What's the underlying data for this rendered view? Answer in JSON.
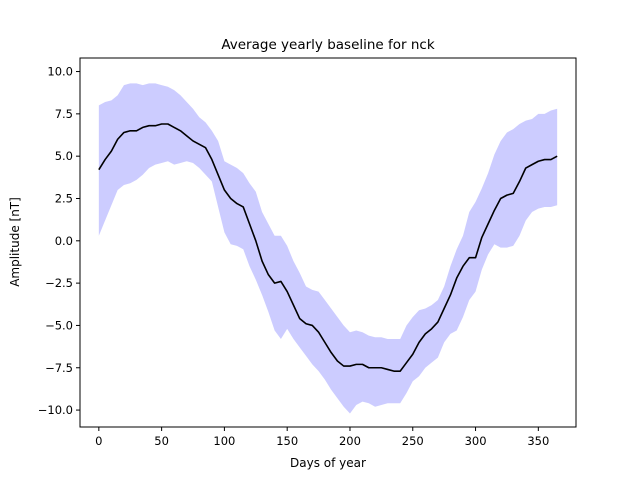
{
  "chart_data": {
    "type": "line",
    "title": "Average yearly baseline for nck",
    "xlabel": "Days of year",
    "ylabel": "Amplitude [nT]",
    "xlim": [
      -15,
      380
    ],
    "ylim": [
      -11,
      10.8
    ],
    "xticks": [
      0,
      50,
      100,
      150,
      200,
      250,
      300,
      350
    ],
    "yticks": [
      10.0,
      7.5,
      5.0,
      2.5,
      0.0,
      -2.5,
      -5.0,
      -7.5,
      -10.0
    ],
    "xtick_labels": [
      "0",
      "50",
      "100",
      "150",
      "200",
      "250",
      "300",
      "350"
    ],
    "ytick_labels": [
      "10.0",
      "7.5",
      "5.0",
      "2.5",
      "0.0",
      "−2.5",
      "−5.0",
      "−7.5",
      "−10.0"
    ],
    "grid": false,
    "series": [
      {
        "kind": "line",
        "color": "#000000",
        "x": [
          0,
          5,
          10,
          15,
          20,
          25,
          30,
          35,
          40,
          45,
          50,
          55,
          60,
          65,
          70,
          75,
          80,
          85,
          90,
          95,
          100,
          105,
          110,
          115,
          120,
          125,
          130,
          135,
          140,
          145,
          150,
          155,
          160,
          165,
          170,
          175,
          180,
          185,
          190,
          195,
          200,
          205,
          210,
          215,
          220,
          225,
          230,
          235,
          240,
          245,
          250,
          255,
          260,
          265,
          270,
          275,
          280,
          285,
          290,
          295,
          300,
          305,
          310,
          315,
          320,
          325,
          330,
          335,
          340,
          345,
          350,
          355,
          360,
          365
        ],
        "y": [
          4.2,
          4.8,
          5.3,
          6.0,
          6.4,
          6.5,
          6.5,
          6.7,
          6.8,
          6.8,
          6.9,
          6.9,
          6.7,
          6.5,
          6.2,
          5.9,
          5.7,
          5.5,
          4.8,
          3.9,
          3.0,
          2.5,
          2.2,
          2.0,
          1.0,
          0.0,
          -1.2,
          -2.0,
          -2.5,
          -2.4,
          -3.0,
          -3.8,
          -4.6,
          -4.9,
          -5.0,
          -5.4,
          -6.0,
          -6.6,
          -7.1,
          -7.4,
          -7.4,
          -7.3,
          -7.3,
          -7.5,
          -7.5,
          -7.5,
          -7.6,
          -7.7,
          -7.7,
          -7.2,
          -6.7,
          -6.0,
          -5.5,
          -5.2,
          -4.8,
          -4.0,
          -3.2,
          -2.2,
          -1.5,
          -1.0,
          -1.0,
          0.2,
          1.0,
          1.8,
          2.5,
          2.7,
          2.8,
          3.5,
          4.3,
          4.5,
          4.7,
          4.8,
          4.8,
          5.0
        ]
      },
      {
        "kind": "band",
        "color": "#0000ff",
        "opacity": 0.2,
        "x": [
          0,
          5,
          10,
          15,
          20,
          25,
          30,
          35,
          40,
          45,
          50,
          55,
          60,
          65,
          70,
          75,
          80,
          85,
          90,
          95,
          100,
          105,
          110,
          115,
          120,
          125,
          130,
          135,
          140,
          145,
          150,
          155,
          160,
          165,
          170,
          175,
          180,
          185,
          190,
          195,
          200,
          205,
          210,
          215,
          220,
          225,
          230,
          235,
          240,
          245,
          250,
          255,
          260,
          265,
          270,
          275,
          280,
          285,
          290,
          295,
          300,
          305,
          310,
          315,
          320,
          325,
          330,
          335,
          340,
          345,
          350,
          355,
          360,
          365
        ],
        "upper": [
          8.0,
          8.2,
          8.3,
          8.6,
          9.2,
          9.3,
          9.3,
          9.2,
          9.3,
          9.3,
          9.2,
          9.1,
          8.9,
          8.6,
          8.2,
          7.8,
          7.3,
          7.0,
          6.5,
          5.9,
          4.7,
          4.5,
          4.3,
          4.0,
          3.4,
          2.9,
          1.7,
          1.0,
          0.3,
          0.3,
          -0.3,
          -1.2,
          -1.9,
          -2.7,
          -2.9,
          -3.0,
          -3.5,
          -4.0,
          -4.5,
          -5.0,
          -5.4,
          -5.3,
          -5.4,
          -5.6,
          -5.7,
          -5.7,
          -5.8,
          -5.8,
          -5.8,
          -5.0,
          -4.5,
          -4.1,
          -4.0,
          -3.8,
          -3.5,
          -2.7,
          -1.5,
          -0.5,
          0.3,
          1.7,
          2.3,
          3.1,
          4.0,
          5.1,
          5.9,
          6.4,
          6.6,
          6.9,
          7.1,
          7.2,
          7.5,
          7.5,
          7.7,
          7.8
        ]
      },
      {
        "kind": "band-lower",
        "x": [
          0,
          5,
          10,
          15,
          20,
          25,
          30,
          35,
          40,
          45,
          50,
          55,
          60,
          65,
          70,
          75,
          80,
          85,
          90,
          95,
          100,
          105,
          110,
          115,
          120,
          125,
          130,
          135,
          140,
          145,
          150,
          155,
          160,
          165,
          170,
          175,
          180,
          185,
          190,
          195,
          200,
          205,
          210,
          215,
          220,
          225,
          230,
          235,
          240,
          245,
          250,
          255,
          260,
          265,
          270,
          275,
          280,
          285,
          290,
          295,
          300,
          305,
          310,
          315,
          320,
          325,
          330,
          335,
          340,
          345,
          350,
          355,
          360,
          365
        ],
        "lower": [
          0.3,
          1.2,
          2.1,
          3.0,
          3.3,
          3.4,
          3.6,
          3.9,
          4.3,
          4.5,
          4.6,
          4.7,
          4.5,
          4.6,
          4.7,
          4.6,
          4.3,
          3.9,
          3.5,
          2.0,
          0.5,
          -0.2,
          -0.3,
          -0.5,
          -1.5,
          -2.3,
          -3.2,
          -4.2,
          -5.3,
          -5.8,
          -5.2,
          -5.8,
          -6.3,
          -6.8,
          -7.3,
          -7.7,
          -8.2,
          -8.8,
          -9.3,
          -9.8,
          -10.2,
          -9.7,
          -9.5,
          -9.6,
          -9.8,
          -9.7,
          -9.6,
          -9.6,
          -9.6,
          -9.0,
          -8.3,
          -8.0,
          -7.5,
          -7.2,
          -6.9,
          -6.0,
          -5.5,
          -5.3,
          -4.5,
          -3.5,
          -3.0,
          -1.7,
          -0.8,
          -0.2,
          -0.4,
          -0.4,
          -0.3,
          0.3,
          1.2,
          1.7,
          1.9,
          2.0,
          2.0,
          2.1
        ]
      }
    ]
  }
}
